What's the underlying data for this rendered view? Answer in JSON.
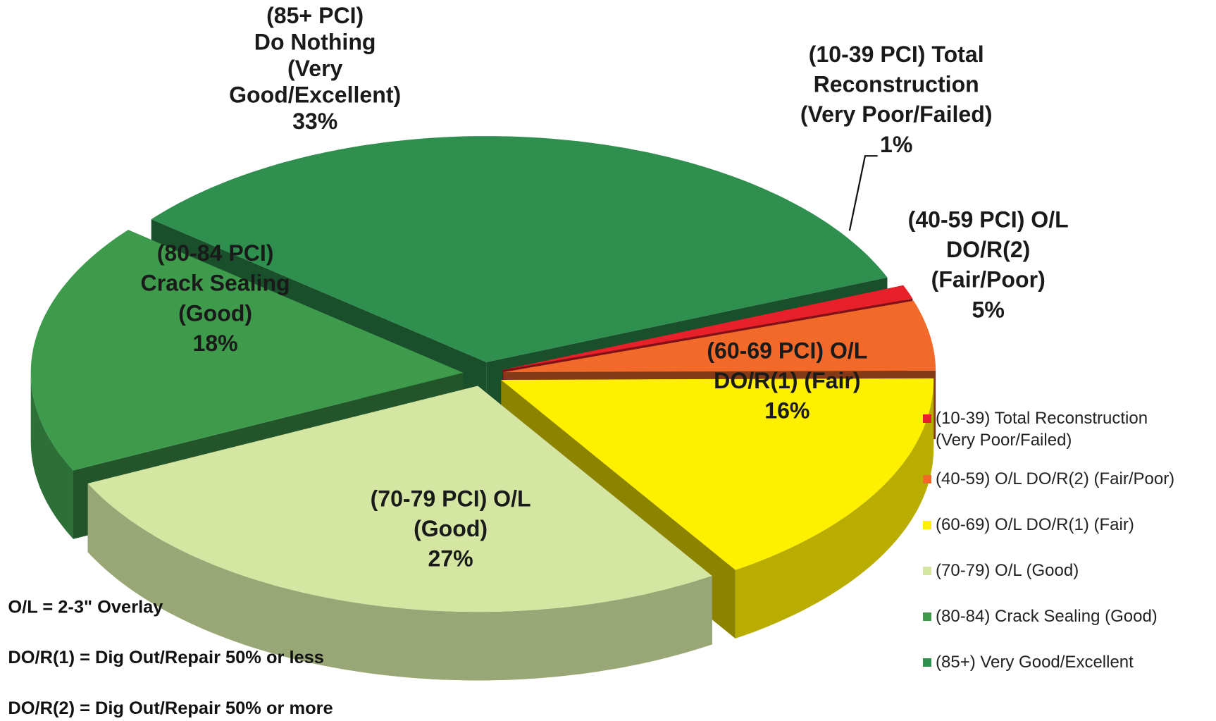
{
  "chart_data": {
    "type": "pie",
    "categories": [
      "(10-39) Total Reconstruction (Very Poor/Failed)",
      "(40-59) O/L DO/R(2)  (Fair/Poor)",
      "(60-69) O/L DO/R(1) (Fair)",
      "(70-79) O/L (Good)",
      "(80-84) Crack Sealing (Good)",
      "(85+) Very Good/Excellent"
    ],
    "values": [
      1,
      5,
      16,
      27,
      18,
      33
    ],
    "value_labels": [
      "1%",
      "5%",
      "16%",
      "27%",
      "18%",
      "33%"
    ],
    "colors": [
      "#e8202a",
      "#f26a2a",
      "#fff000",
      "#d4e6a2",
      "#3e9b4c",
      "#2f8f4e"
    ],
    "slice_labels": [
      [
        "(10-39 PCI) Total",
        "Reconstruction",
        "(Very Poor/Failed)"
      ],
      [
        "(40-59 PCI) O/L",
        "DO/R(2)",
        "(Fair/Poor)"
      ],
      [
        "(60-69 PCI) O/L",
        "DO/R(1) (Fair)"
      ],
      [
        "(70-79 PCI) O/L",
        "(Good)"
      ],
      [
        "(80-84 PCI)",
        "Crack Sealing",
        "(Good)"
      ],
      [
        "(85+ PCI)",
        "Do Nothing",
        "(Very",
        "Good/Excellent)"
      ]
    ],
    "notes": [
      "O/L = 2-3\" Overlay",
      "DO/R(1) =  Dig Out/Repair 50% or less",
      "DO/R(2) =  Dig Out/Repair 50% or more"
    ],
    "legend_position": "right"
  }
}
